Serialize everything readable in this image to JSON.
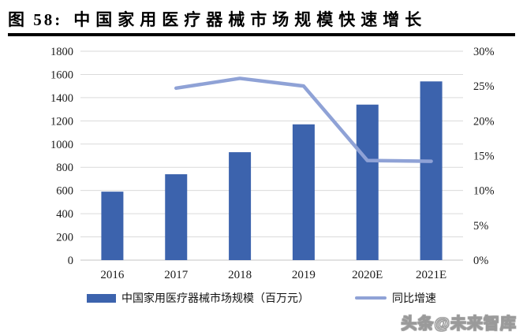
{
  "figure": {
    "label": "图 58:",
    "title": "中国家用医疗器械市场规模快速增长"
  },
  "watermark": "头条@未来智库",
  "colors": {
    "bar": "#3C63AD",
    "line": "#8FA2D6",
    "grid": "#DADADA",
    "axis_line": "#C6C6C6",
    "tick_text": "#1A1A1A",
    "title_rule": "#000000"
  },
  "chart_data": {
    "type": "bar",
    "subtype": "combo: bars on left axis + line on right axis",
    "title": "中国家用医疗器械市场规模快速增长",
    "categories": [
      "2016",
      "2017",
      "2018",
      "2019",
      "2020E",
      "2021E"
    ],
    "series": [
      {
        "name": "中国家用医疗器械市场规模（百万元）",
        "type": "bar",
        "axis": "left",
        "values": [
          590,
          740,
          930,
          1170,
          1340,
          1540
        ]
      },
      {
        "name": "同比增速",
        "type": "line",
        "axis": "right",
        "unit": "%",
        "values": [
          null,
          24.7,
          26.1,
          25.0,
          14.3,
          14.2
        ]
      }
    ],
    "left_axis": {
      "min": 0,
      "max": 1800,
      "step": 200
    },
    "right_axis": {
      "min": 0,
      "max": 30,
      "step": 5,
      "suffix": "%"
    },
    "grid": true,
    "legend_position": "bottom"
  }
}
